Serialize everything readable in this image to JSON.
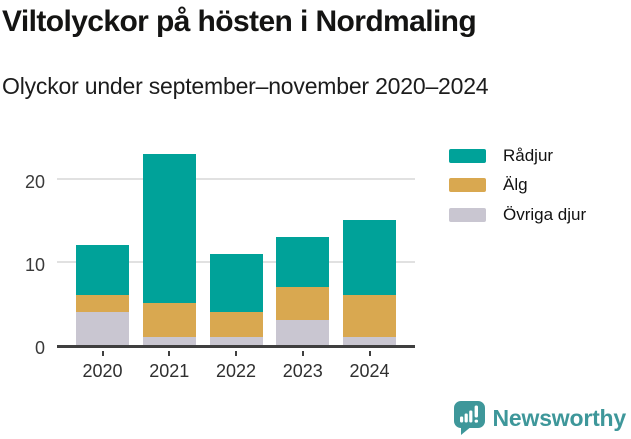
{
  "header": {
    "title": "Viltolyckor på hösten i Nordmaling",
    "subtitle": "Olyckor under september–november 2020–2024"
  },
  "chart_data": {
    "type": "bar",
    "stacked": true,
    "title": "Viltolyckor på hösten i Nordmaling",
    "subtitle": "Olyckor under september–november 2020–2024",
    "categories": [
      "2020",
      "2021",
      "2022",
      "2023",
      "2024"
    ],
    "series": [
      {
        "name": "Rådjur",
        "color": "#00A299",
        "values": [
          6,
          18,
          7,
          6,
          9
        ]
      },
      {
        "name": "Älg",
        "color": "#D9A850",
        "values": [
          2,
          4,
          3,
          4,
          5
        ]
      },
      {
        "name": "Övriga djur",
        "color": "#C9C6D1",
        "values": [
          4,
          1,
          1,
          3,
          1
        ]
      }
    ],
    "totals": [
      12,
      23,
      11,
      13,
      15
    ],
    "xlabel": "",
    "ylabel": "",
    "yticks": [
      0,
      10,
      20
    ],
    "ylim": [
      0,
      25
    ],
    "grid": "horizontal",
    "legend_position": "top-right",
    "legend_entries": [
      "Rådjur",
      "Älg",
      "Övriga djur"
    ]
  },
  "ui_colors": {
    "axis": "#3F3F3F",
    "gridline": "#E1E1E1",
    "title_text": "#141413",
    "brand_teal": "#3E979A"
  },
  "footer": {
    "brand": "Newsworthy",
    "logo_icon": "newsworthy-chart-bubble-icon"
  }
}
